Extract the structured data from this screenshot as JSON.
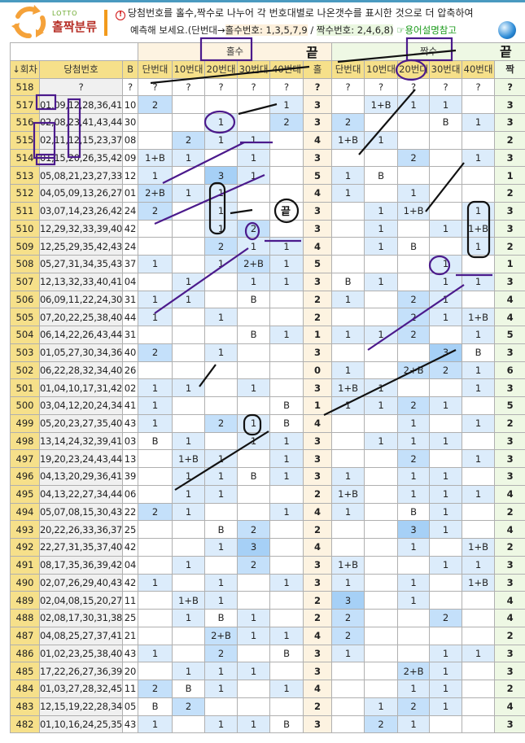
{
  "header": {
    "logo_small": "LOTTO",
    "logo_title": "홀짝분류",
    "description_line1": "당첨번호를 홀수,짝수로 나누어 각 번호대별로 나온갯수를 표시한 것으로 더 압축하여",
    "description_line2_prefix": "예측해 보세요.(단번대→",
    "odd_label": "홀수번호: 1,3,5,7,9",
    "separator": " / ",
    "even_label": "짝수번호: 2,4,6,8)",
    "help_link": "☞용어설명참고"
  },
  "table": {
    "group_odd": "홀수",
    "group_even": "짝수",
    "columns": [
      "↓회차",
      "당첨번호",
      "B",
      "단번대",
      "10번대",
      "20번대",
      "30번대",
      "40번대",
      "홀",
      "단번대",
      "10번대",
      "20번대",
      "30번대",
      "40번대",
      "짝"
    ],
    "rows": [
      {
        "round": "518",
        "numbers": "?",
        "bonus": "?",
        "odd": [
          "?",
          "?",
          "?",
          "?",
          "?"
        ],
        "odd_total": "?",
        "even": [
          "?",
          "?",
          "?",
          "?",
          "?"
        ],
        "even_total": "?"
      },
      {
        "round": "517",
        "numbers": "01,09,12,28,36,41",
        "bonus": "10",
        "odd": [
          "2",
          "",
          "",
          "",
          "1"
        ],
        "odd_total": "3",
        "even": [
          "",
          "1+B",
          "1",
          "1",
          ""
        ],
        "even_total": "3"
      },
      {
        "round": "516",
        "numbers": "02,08,23,41,43,44",
        "bonus": "30",
        "odd": [
          "",
          "",
          "1",
          "",
          "2"
        ],
        "odd_total": "3",
        "even": [
          "2",
          "",
          "",
          "B",
          "1"
        ],
        "even_total": "3"
      },
      {
        "round": "515",
        "numbers": "02,11,12,15,23,37",
        "bonus": "08",
        "odd": [
          "",
          "2",
          "1",
          "1",
          ""
        ],
        "odd_total": "4",
        "even": [
          "1+B",
          "1",
          "",
          "",
          ""
        ],
        "even_total": "2"
      },
      {
        "round": "514",
        "numbers": "01,15,20,26,35,42",
        "bonus": "09",
        "odd": [
          "1+B",
          "1",
          "",
          "1",
          ""
        ],
        "odd_total": "3",
        "even": [
          "",
          "",
          "2",
          "",
          "1"
        ],
        "even_total": "3"
      },
      {
        "round": "513",
        "numbers": "05,08,21,23,27,33",
        "bonus": "12",
        "odd": [
          "1",
          "",
          "3",
          "1",
          ""
        ],
        "odd_total": "5",
        "even": [
          "1",
          "B",
          "",
          "",
          ""
        ],
        "even_total": "1"
      },
      {
        "round": "512",
        "numbers": "04,05,09,13,26,27",
        "bonus": "01",
        "odd": [
          "2+B",
          "1",
          "1",
          "",
          ""
        ],
        "odd_total": "4",
        "even": [
          "1",
          "",
          "1",
          "",
          ""
        ],
        "even_total": "2"
      },
      {
        "round": "511",
        "numbers": "03,07,14,23,26,42",
        "bonus": "24",
        "odd": [
          "2",
          "",
          "1",
          "",
          ""
        ],
        "odd_total": "3",
        "even": [
          "",
          "1",
          "1+B",
          "",
          "1"
        ],
        "even_total": "3"
      },
      {
        "round": "510",
        "numbers": "12,29,32,33,39,40",
        "bonus": "42",
        "odd": [
          "",
          "",
          "1",
          "2",
          ""
        ],
        "odd_total": "3",
        "even": [
          "",
          "1",
          "",
          "1",
          "1+B"
        ],
        "even_total": "3"
      },
      {
        "round": "509",
        "numbers": "12,25,29,35,42,43",
        "bonus": "24",
        "odd": [
          "",
          "",
          "2",
          "1",
          "1"
        ],
        "odd_total": "4",
        "even": [
          "",
          "1",
          "B",
          "",
          "1"
        ],
        "even_total": "2"
      },
      {
        "round": "508",
        "numbers": "05,27,31,34,35,43",
        "bonus": "37",
        "odd": [
          "1",
          "",
          "1",
          "2+B",
          "1"
        ],
        "odd_total": "5",
        "even": [
          "",
          "",
          "",
          "1",
          ""
        ],
        "even_total": "1"
      },
      {
        "round": "507",
        "numbers": "12,13,32,33,40,41",
        "bonus": "04",
        "odd": [
          "",
          "1",
          "",
          "1",
          "1"
        ],
        "odd_total": "3",
        "even": [
          "B",
          "1",
          "",
          "1",
          "1"
        ],
        "even_total": "3"
      },
      {
        "round": "506",
        "numbers": "06,09,11,22,24,30",
        "bonus": "31",
        "odd": [
          "1",
          "1",
          "",
          "B",
          ""
        ],
        "odd_total": "2",
        "even": [
          "1",
          "",
          "2",
          "1",
          ""
        ],
        "even_total": "4"
      },
      {
        "round": "505",
        "numbers": "07,20,22,25,38,40",
        "bonus": "44",
        "odd": [
          "1",
          "",
          "1",
          "",
          ""
        ],
        "odd_total": "2",
        "even": [
          "",
          "",
          "2",
          "1",
          "1+B"
        ],
        "even_total": "4"
      },
      {
        "round": "504",
        "numbers": "06,14,22,26,43,44",
        "bonus": "31",
        "odd": [
          "",
          "",
          "",
          "B",
          "1"
        ],
        "odd_total": "1",
        "even": [
          "1",
          "1",
          "2",
          "",
          "1"
        ],
        "even_total": "5"
      },
      {
        "round": "503",
        "numbers": "01,05,27,30,34,36",
        "bonus": "40",
        "odd": [
          "2",
          "",
          "1",
          "",
          ""
        ],
        "odd_total": "3",
        "even": [
          "",
          "",
          "",
          "3",
          "B"
        ],
        "even_total": "3"
      },
      {
        "round": "502",
        "numbers": "06,22,28,32,34,40",
        "bonus": "26",
        "odd": [
          "",
          "",
          "",
          "",
          ""
        ],
        "odd_total": "0",
        "even": [
          "1",
          "",
          "2+B",
          "2",
          "1"
        ],
        "even_total": "6"
      },
      {
        "round": "501",
        "numbers": "01,04,10,17,31,42",
        "bonus": "02",
        "odd": [
          "1",
          "1",
          "",
          "1",
          ""
        ],
        "odd_total": "3",
        "even": [
          "1+B",
          "1",
          "",
          "",
          "1"
        ],
        "even_total": "3"
      },
      {
        "round": "500",
        "numbers": "03,04,12,20,24,34",
        "bonus": "41",
        "odd": [
          "1",
          "",
          "",
          "",
          "B"
        ],
        "odd_total": "1",
        "even": [
          "1",
          "1",
          "2",
          "1",
          ""
        ],
        "even_total": "5"
      },
      {
        "round": "499",
        "numbers": "05,20,23,27,35,40",
        "bonus": "43",
        "odd": [
          "1",
          "",
          "2",
          "1",
          "B"
        ],
        "odd_total": "4",
        "even": [
          "",
          "",
          "1",
          "",
          "1"
        ],
        "even_total": "2"
      },
      {
        "round": "498",
        "numbers": "13,14,24,32,39,41",
        "bonus": "03",
        "odd": [
          "B",
          "1",
          "",
          "1",
          "1"
        ],
        "odd_total": "3",
        "even": [
          "",
          "1",
          "1",
          "1",
          ""
        ],
        "even_total": "3"
      },
      {
        "round": "497",
        "numbers": "19,20,23,24,43,44",
        "bonus": "13",
        "odd": [
          "",
          "1+B",
          "1",
          "",
          "1"
        ],
        "odd_total": "3",
        "even": [
          "",
          "",
          "2",
          "",
          "1"
        ],
        "even_total": "3"
      },
      {
        "round": "496",
        "numbers": "04,13,20,29,36,41",
        "bonus": "39",
        "odd": [
          "",
          "1",
          "1",
          "B",
          "1"
        ],
        "odd_total": "3",
        "even": [
          "1",
          "",
          "1",
          "1",
          ""
        ],
        "even_total": "3"
      },
      {
        "round": "495",
        "numbers": "04,13,22,27,34,44",
        "bonus": "06",
        "odd": [
          "",
          "1",
          "1",
          "",
          ""
        ],
        "odd_total": "2",
        "even": [
          "1+B",
          "",
          "1",
          "1",
          "1"
        ],
        "even_total": "4"
      },
      {
        "round": "494",
        "numbers": "05,07,08,15,30,43",
        "bonus": "22",
        "odd": [
          "2",
          "1",
          "",
          "",
          "1"
        ],
        "odd_total": "4",
        "even": [
          "1",
          "",
          "B",
          "1",
          ""
        ],
        "even_total": "2"
      },
      {
        "round": "493",
        "numbers": "20,22,26,33,36,37",
        "bonus": "25",
        "odd": [
          "",
          "",
          "B",
          "2",
          ""
        ],
        "odd_total": "2",
        "even": [
          "",
          "",
          "3",
          "1",
          ""
        ],
        "even_total": "4"
      },
      {
        "round": "492",
        "numbers": "22,27,31,35,37,40",
        "bonus": "42",
        "odd": [
          "",
          "",
          "1",
          "3",
          ""
        ],
        "odd_total": "4",
        "even": [
          "",
          "",
          "1",
          "",
          "1+B"
        ],
        "even_total": "2"
      },
      {
        "round": "491",
        "numbers": "08,17,35,36,39,42",
        "bonus": "04",
        "odd": [
          "",
          "1",
          "",
          "2",
          ""
        ],
        "odd_total": "3",
        "even": [
          "1+B",
          "",
          "",
          "1",
          "1"
        ],
        "even_total": "3"
      },
      {
        "round": "490",
        "numbers": "02,07,26,29,40,43",
        "bonus": "42",
        "odd": [
          "1",
          "",
          "1",
          "",
          "1"
        ],
        "odd_total": "3",
        "even": [
          "1",
          "",
          "1",
          "",
          "1+B"
        ],
        "even_total": "3"
      },
      {
        "round": "489",
        "numbers": "02,04,08,15,20,27",
        "bonus": "11",
        "odd": [
          "",
          "1+B",
          "1",
          "",
          ""
        ],
        "odd_total": "2",
        "even": [
          "3",
          "",
          "1",
          "",
          ""
        ],
        "even_total": "4"
      },
      {
        "round": "488",
        "numbers": "02,08,17,30,31,38",
        "bonus": "25",
        "odd": [
          "",
          "1",
          "B",
          "1",
          ""
        ],
        "odd_total": "2",
        "even": [
          "2",
          "",
          "",
          "2",
          ""
        ],
        "even_total": "4"
      },
      {
        "round": "487",
        "numbers": "04,08,25,27,37,41",
        "bonus": "21",
        "odd": [
          "",
          "",
          "2+B",
          "1",
          "1"
        ],
        "odd_total": "4",
        "even": [
          "2",
          "",
          "",
          "",
          ""
        ],
        "even_total": "2"
      },
      {
        "round": "486",
        "numbers": "01,02,23,25,38,40",
        "bonus": "43",
        "odd": [
          "1",
          "",
          "2",
          "",
          "B"
        ],
        "odd_total": "3",
        "even": [
          "1",
          "",
          "",
          "1",
          "1"
        ],
        "even_total": "3"
      },
      {
        "round": "485",
        "numbers": "17,22,26,27,36,39",
        "bonus": "20",
        "odd": [
          "",
          "1",
          "1",
          "1",
          ""
        ],
        "odd_total": "3",
        "even": [
          "",
          "",
          "2+B",
          "1",
          ""
        ],
        "even_total": "3"
      },
      {
        "round": "484",
        "numbers": "01,03,27,28,32,45",
        "bonus": "11",
        "odd": [
          "2",
          "B",
          "1",
          "",
          "1"
        ],
        "odd_total": "4",
        "even": [
          "",
          "",
          "1",
          "1",
          ""
        ],
        "even_total": "2"
      },
      {
        "round": "483",
        "numbers": "12,15,19,22,28,34",
        "bonus": "05",
        "odd": [
          "B",
          "2",
          "",
          "",
          ""
        ],
        "odd_total": "2",
        "even": [
          "",
          "1",
          "2",
          "1",
          ""
        ],
        "even_total": "4"
      },
      {
        "round": "482",
        "numbers": "01,10,16,24,25,35",
        "bonus": "43",
        "odd": [
          "1",
          "",
          "1",
          "1",
          "B"
        ],
        "odd_total": "3",
        "even": [
          "",
          "2",
          "1",
          "",
          ""
        ],
        "even_total": "3"
      }
    ]
  },
  "annotations": {
    "handwritten_text": [
      "끝",
      "끝",
      "끝"
    ],
    "pen_colors": {
      "purple": "#4b1a8c",
      "black": "#111111"
    }
  },
  "colors": {
    "header_yellow": "#f6e08a",
    "odd_group": "#fdf3e1",
    "even_group": "#eef8e4",
    "count_blue": "#c4e0fa"
  }
}
